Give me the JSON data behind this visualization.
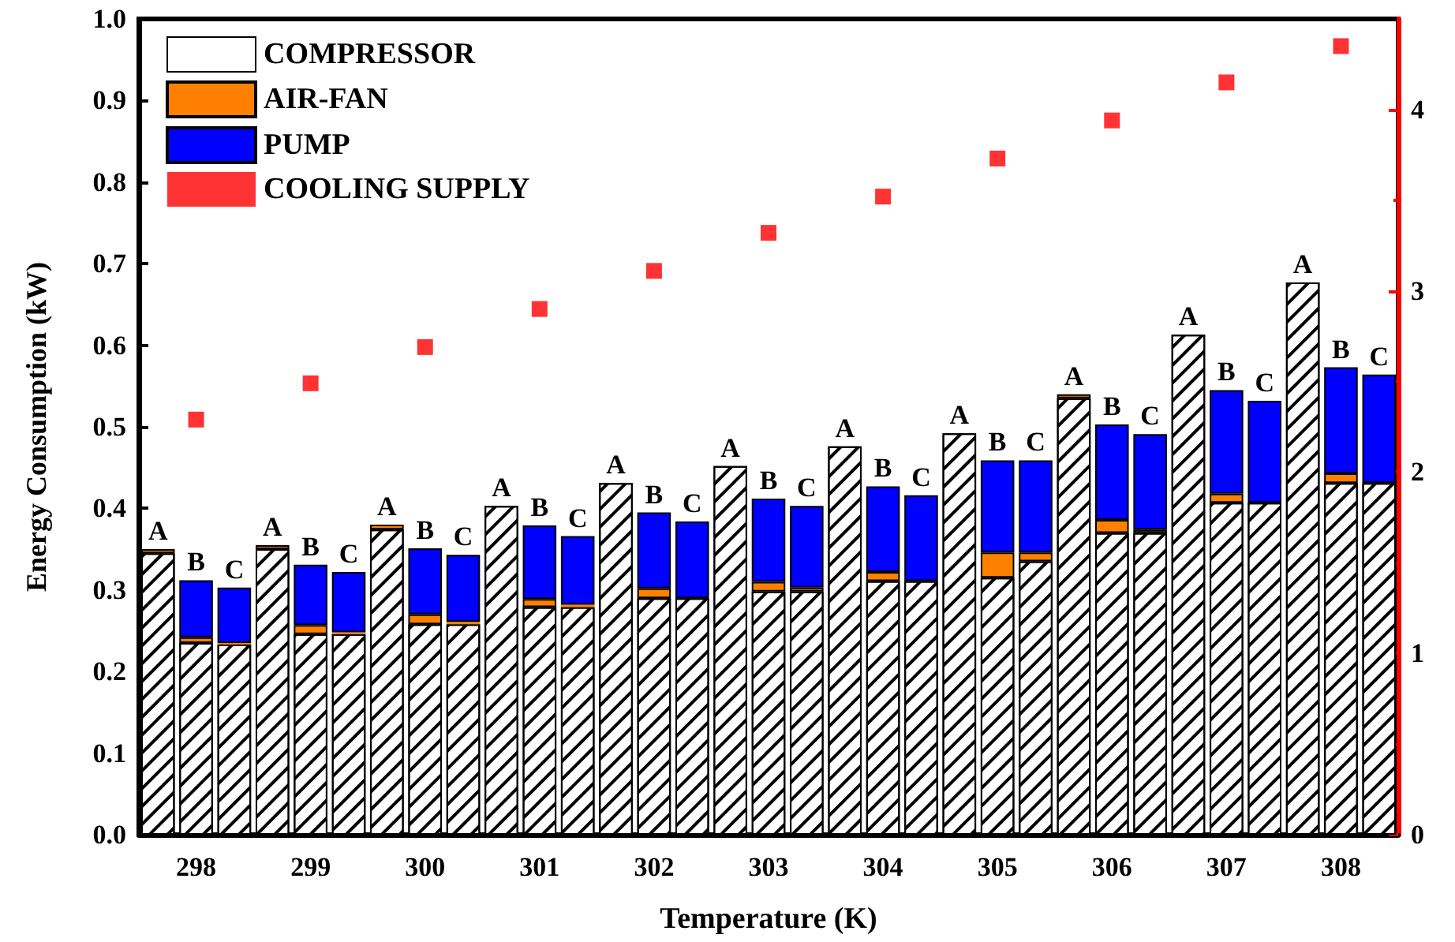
{
  "chart_data": {
    "type": "bar",
    "stacked": true,
    "xlabel": "Temperature (K)",
    "ylabel": "Energy Consumption (kW)",
    "categories": [
      null,
      "298",
      null,
      null,
      "299",
      null,
      null,
      "300",
      null,
      null,
      "301",
      null,
      null,
      "302",
      null,
      null,
      "303",
      null,
      null,
      "304",
      null,
      null,
      "305",
      null,
      null,
      "306",
      null,
      null,
      "307",
      null,
      null,
      "308",
      null
    ],
    "ylim": [
      0,
      1
    ],
    "yticks": [
      {
        "value": 0,
        "label": "0.0"
      },
      0.1,
      0.2,
      0.3,
      0.4,
      0.5,
      0.6,
      0.7,
      0.8,
      0.9,
      {
        "value": 1,
        "label": "1.0"
      }
    ],
    "y2lim": [
      0,
      4.5
    ],
    "y2ticks": [
      0,
      1,
      2,
      3,
      4
    ],
    "grid": false,
    "legend": "top left",
    "series": [
      {
        "name": "COMPRESSOR",
        "color": "#ffffff",
        "values": [
          0.345,
          0.235,
          0.233,
          0.35,
          0.246,
          0.246,
          0.374,
          0.258,
          0.258,
          0.403,
          0.279,
          0.279,
          0.431,
          0.29,
          0.29,
          0.452,
          0.298,
          0.298,
          0.476,
          0.311,
          0.311,
          0.492,
          0.315,
          0.335,
          0.535,
          0.37,
          0.37,
          0.613,
          0.407,
          0.407,
          0.677,
          0.431,
          0.431
        ]
      },
      {
        "name": "AIR-FAN",
        "color": "#ff8000",
        "values": [
          0.005,
          0.007,
          0.002,
          0.005,
          0.011,
          0.002,
          0.006,
          0.012,
          0.003,
          0,
          0.01,
          0.003,
          0,
          0.012,
          0,
          0,
          0.012,
          0.005,
          0,
          0.011,
          0,
          0,
          0.031,
          0.011,
          0.005,
          0.016,
          0.004,
          0,
          0.011,
          0,
          0,
          0.012,
          0
        ]
      },
      {
        "name": "PUMP",
        "color": "#0000ff",
        "values": [
          0,
          0.07,
          0.068,
          0,
          0.074,
          0.074,
          0,
          0.081,
          0.082,
          0,
          0.09,
          0.084,
          0,
          0.093,
          0.094,
          0,
          0.102,
          0.1,
          0,
          0.105,
          0.105,
          0,
          0.113,
          0.113,
          0,
          0.117,
          0.117,
          0,
          0.127,
          0.125,
          0,
          0.13,
          0.133
        ],
        "value_labels": [
          "A",
          "B",
          "C",
          "A",
          "B",
          "C",
          "A",
          "B",
          "C",
          "A",
          "B",
          "C",
          "A",
          "B",
          "C",
          "A",
          "B",
          "C",
          "A",
          "B",
          "C",
          "A",
          "B",
          "C",
          "A",
          "B",
          "C",
          "A",
          "B",
          "C",
          "A",
          "B",
          "C"
        ]
      },
      {
        "name": "COOLING SUPPLY",
        "type": "scatter",
        "axis": "y2",
        "marker": "square",
        "color": "#ff0000",
        "x": [
          "298",
          "299",
          "300",
          "301",
          "302",
          "303",
          "304",
          "305",
          "306",
          "307",
          "308"
        ],
        "values": [
          2.29,
          2.49,
          2.69,
          2.9,
          3.11,
          3.32,
          3.52,
          3.73,
          3.94,
          4.15,
          4.35
        ]
      }
    ]
  }
}
